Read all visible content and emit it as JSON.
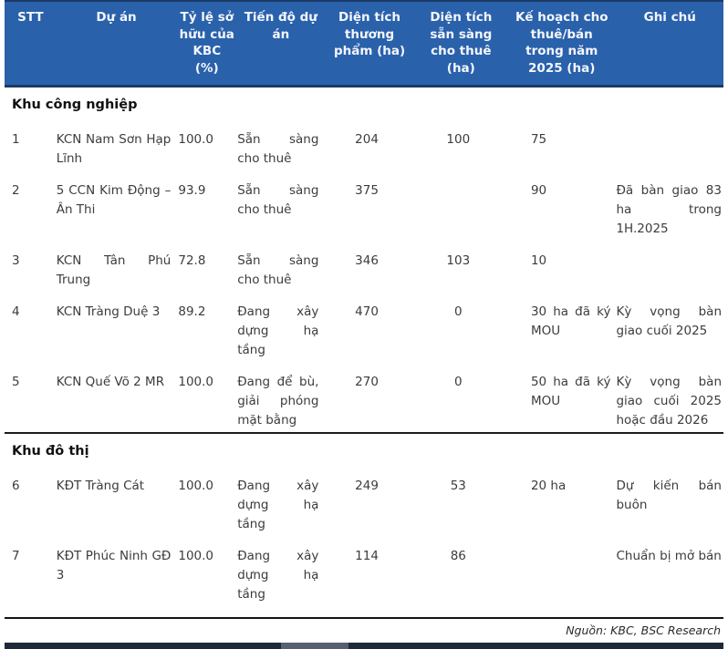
{
  "table": {
    "headers": [
      "STT",
      "Dự án",
      "Tỷ lệ sở hữu của KBC (%)",
      "Tiến độ dự án",
      "Diện tích thương phẩm (ha)",
      "Diện tích sẵn sàng cho thuê (ha)",
      "Kế hoạch cho thuê/bán trong năm 2025 (ha)",
      "Ghi chú"
    ],
    "sections": [
      {
        "title": "Khu công nghiệp",
        "rows": [
          [
            "1",
            "KCN Nam Sơn Hạp Lĩnh",
            "100.0",
            "Sẵn sàng cho thuê",
            "204",
            "100",
            "75",
            ""
          ],
          [
            "2",
            "5 CCN Kim Động – Ân Thi",
            "93.9",
            "Sẵn sàng cho thuê",
            "375",
            "",
            "90",
            "Đã bàn giao 83 ha trong 1H.2025"
          ],
          [
            "3",
            "KCN Tân Phú Trung",
            "72.8",
            "Sẵn sàng cho thuê",
            "346",
            "103",
            "10",
            ""
          ],
          [
            "4",
            "KCN Tràng Duệ 3",
            "89.2",
            "Đang xây dựng hạ tầng",
            "470",
            "0",
            "30 ha đã ký MOU",
            "Kỳ vọng bàn giao cuối 2025"
          ],
          [
            "5",
            "KCN Quế Võ 2 MR",
            "100.0",
            "Đang để bù, giải phóng mặt bằng",
            "270",
            "0",
            "50 ha đã ký MOU",
            "Kỳ vọng bàn giao cuối 2025 hoặc đầu 2026"
          ]
        ]
      },
      {
        "title": "Khu đô thị",
        "rows": [
          [
            "6",
            "KĐT Tràng Cát",
            "100.0",
            "Đang xây dựng hạ tầng",
            "249",
            "53",
            "20 ha",
            "Dự kiến bán buôn"
          ],
          [
            "7",
            "KĐT Phúc Ninh GĐ 3",
            "100.0",
            "Đang xây dựng hạ tầng",
            "114",
            "86",
            "",
            "Chuẩn bị mở bán"
          ]
        ]
      }
    ],
    "source": "Nguồn: KBC, BSC Research"
  },
  "colors": {
    "header_bg": "#2a61ab",
    "header_border": "#1b3a66",
    "footer_bar_dark": "#1f2a38",
    "footer_bar_light": "#566070"
  }
}
